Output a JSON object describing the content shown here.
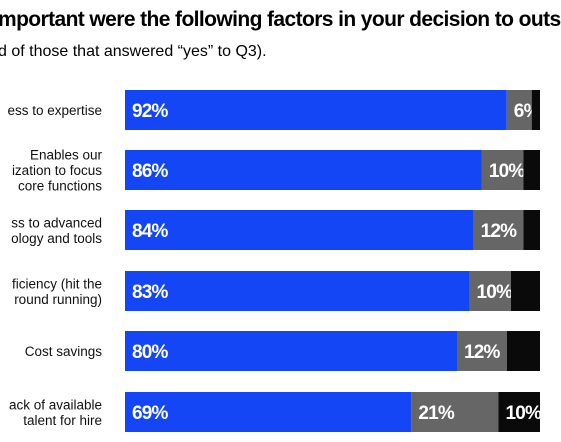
{
  "chart_data": {
    "type": "bar",
    "stacked": true,
    "orientation": "horizontal",
    "title": "mportant were the following factors in your decision to outs",
    "subtitle": "d of those that answered “yes” to Q3).",
    "xlim": [
      0,
      100
    ],
    "grid": false,
    "categories": [
      [
        "ess to expertise"
      ],
      [
        "Enables our",
        "ization to focus",
        "core functions"
      ],
      [
        "ss to advanced",
        "ology and tools"
      ],
      [
        "ficiency (hit the",
        "round running)"
      ],
      [
        "Cost savings"
      ],
      [
        "ack of available",
        "talent for hire"
      ]
    ],
    "series": [
      {
        "color": "#1446f5",
        "values": [
          92,
          86,
          84,
          83,
          80,
          69
        ],
        "labels": [
          "92%",
          "86%",
          "84%",
          "83%",
          "80%",
          "69%"
        ]
      },
      {
        "color": "#666666",
        "values": [
          6,
          10,
          12,
          10,
          12,
          21
        ],
        "labels": [
          "6%",
          "10%",
          "12%",
          "10%",
          "12%",
          "21%"
        ]
      },
      {
        "color": "#0a0a0a",
        "values": [
          2,
          4,
          4,
          7,
          8,
          10
        ],
        "labels": [
          "",
          "",
          "",
          "",
          "",
          "10%"
        ]
      }
    ]
  }
}
